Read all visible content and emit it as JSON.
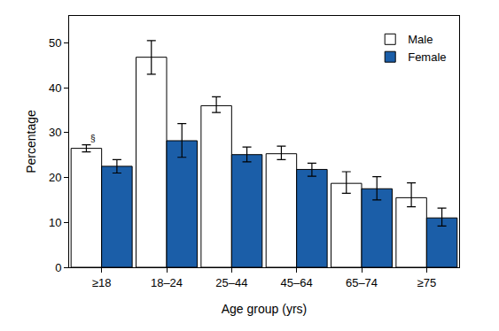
{
  "chart_data": {
    "type": "bar",
    "xlabel": "Age group (yrs)",
    "ylabel": "Percentage",
    "categories": [
      "≥18",
      "18–24",
      "25–44",
      "45–64",
      "65–74",
      "≥75"
    ],
    "series": [
      {
        "name": "Male",
        "color": "#ffffff",
        "values": [
          26.5,
          46.8,
          36.0,
          25.3,
          18.7,
          15.5
        ],
        "error_plus": [
          0.8,
          3.7,
          2.0,
          1.7,
          2.6,
          3.3
        ],
        "error_minus": [
          0.8,
          3.8,
          1.5,
          1.3,
          2.2,
          2.0
        ]
      },
      {
        "name": "Female",
        "color": "#1b5ea8",
        "values": [
          22.5,
          28.2,
          25.1,
          21.8,
          17.5,
          11.0
        ],
        "error_plus": [
          1.5,
          3.8,
          1.7,
          1.4,
          2.7,
          2.2
        ],
        "error_minus": [
          1.5,
          3.7,
          1.6,
          1.5,
          2.5,
          1.8
        ]
      }
    ],
    "ylim": [
      0,
      56
    ],
    "yticks": [
      0,
      10,
      20,
      30,
      40,
      50
    ],
    "grid": false,
    "legend": "top right",
    "annotations": [
      {
        "text": "§",
        "category": "≥18",
        "series": "Male"
      }
    ]
  }
}
